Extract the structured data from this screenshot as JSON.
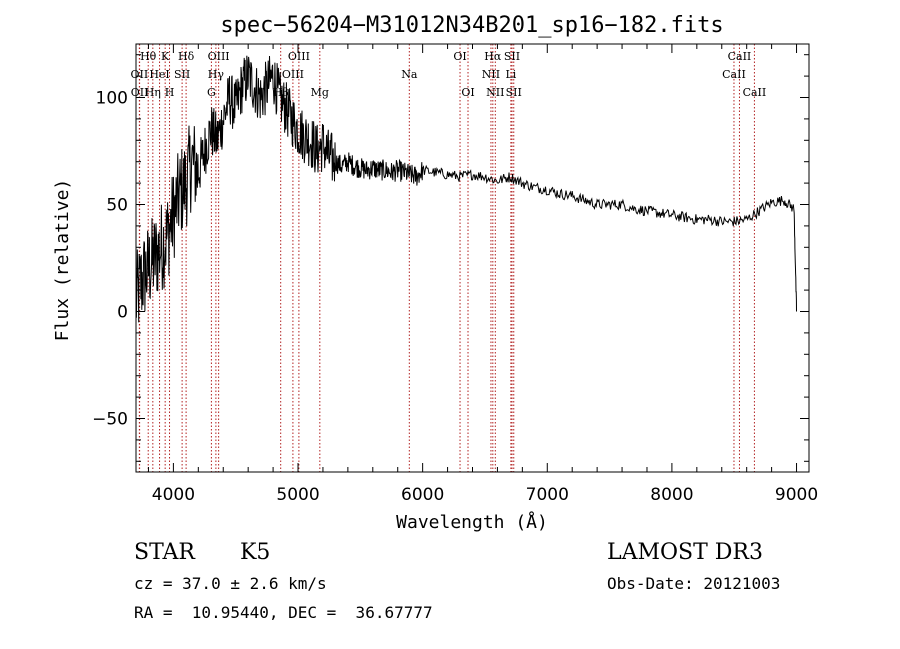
{
  "chart_data": {
    "type": "line",
    "title": "spec−56204−M31012N34B201_sp16−182.fits",
    "xlabel": "Wavelength (Å)",
    "ylabel": "Flux (relative)",
    "xlim": [
      3700,
      9100
    ],
    "ylim": [
      -75,
      125
    ],
    "x_ticks": [
      4000,
      5000,
      6000,
      7000,
      8000,
      9000
    ],
    "y_ticks": [
      -50,
      0,
      50,
      100
    ],
    "grid": false,
    "legend": "none",
    "series": [
      {
        "name": "spectrum",
        "x": [
          3700,
          3750,
          3800,
          3850,
          3900,
          3950,
          4000,
          4050,
          4100,
          4150,
          4200,
          4250,
          4300,
          4350,
          4400,
          4450,
          4500,
          4550,
          4600,
          4650,
          4700,
          4750,
          4800,
          4850,
          4900,
          4950,
          5000,
          5050,
          5100,
          5150,
          5200,
          5250,
          5300,
          5350,
          5400,
          5450,
          5500,
          5550,
          5600,
          5650,
          5700,
          5750,
          5800,
          5850,
          5900,
          5950,
          6000,
          6100,
          6200,
          6300,
          6400,
          6500,
          6600,
          6700,
          6800,
          6900,
          7000,
          7100,
          7200,
          7300,
          7400,
          7500,
          7600,
          7700,
          7800,
          7900,
          8000,
          8100,
          8200,
          8300,
          8400,
          8500,
          8600,
          8700,
          8800,
          8900,
          8980,
          9000
        ],
        "y": [
          5,
          15,
          20,
          25,
          30,
          35,
          45,
          55,
          60,
          70,
          65,
          75,
          85,
          80,
          90,
          100,
          95,
          105,
          110,
          105,
          100,
          105,
          110,
          100,
          95,
          90,
          85,
          82,
          80,
          75,
          78,
          72,
          70,
          68,
          70,
          68,
          67,
          66,
          67,
          66,
          66,
          65,
          66,
          65,
          64,
          63,
          66,
          65,
          64,
          63,
          64,
          63,
          61,
          63,
          60,
          58,
          57,
          55,
          54,
          52,
          50,
          50,
          50,
          48,
          47,
          46,
          45,
          44,
          43,
          43,
          42,
          42,
          43,
          47,
          51,
          52,
          48,
          0
        ]
      }
    ],
    "line_markers": [
      {
        "label": "Hθ",
        "wavelength": 3798,
        "row": 0
      },
      {
        "label": "OII",
        "wavelength": 3727,
        "row": 1
      },
      {
        "label": "OII",
        "wavelength": 3729,
        "row": 2
      },
      {
        "label": "Hη",
        "wavelength": 3835,
        "row": 2
      },
      {
        "label": "K",
        "wavelength": 3934,
        "row": 0
      },
      {
        "label": "HeI",
        "wavelength": 3889,
        "row": 1
      },
      {
        "label": "H",
        "wavelength": 3969,
        "row": 2
      },
      {
        "label": "SII",
        "wavelength": 4070,
        "row": 1
      },
      {
        "label": "Hδ",
        "wavelength": 4102,
        "row": 0
      },
      {
        "label": "OIII",
        "wavelength": 4363,
        "row": 0
      },
      {
        "label": "Hγ",
        "wavelength": 4341,
        "row": 1
      },
      {
        "label": "G",
        "wavelength": 4305,
        "row": 2
      },
      {
        "label": "OIII",
        "wavelength": 5007,
        "row": 0
      },
      {
        "label": "OIII",
        "wavelength": 4959,
        "row": 1
      },
      {
        "label": "Hβ",
        "wavelength": 4861,
        "row": 2
      },
      {
        "label": "Mg",
        "wavelength": 5175,
        "row": 2
      },
      {
        "label": "Na",
        "wavelength": 5893,
        "row": 1
      },
      {
        "label": "OI",
        "wavelength": 6300,
        "row": 0
      },
      {
        "label": "OI",
        "wavelength": 6364,
        "row": 2
      },
      {
        "label": "Hα",
        "wavelength": 6563,
        "row": 0
      },
      {
        "label": "SII",
        "wavelength": 6717,
        "row": 0
      },
      {
        "label": "NII",
        "wavelength": 6548,
        "row": 1
      },
      {
        "label": "Li",
        "wavelength": 6708,
        "row": 1
      },
      {
        "label": "NII",
        "wavelength": 6583,
        "row": 2
      },
      {
        "label": "SII",
        "wavelength": 6731,
        "row": 2
      },
      {
        "label": "CaII",
        "wavelength": 8542,
        "row": 0
      },
      {
        "label": "CaII",
        "wavelength": 8498,
        "row": 1
      },
      {
        "label": "CaII",
        "wavelength": 8662,
        "row": 2
      }
    ],
    "annotations": {
      "class": "STAR",
      "subclass": "K5",
      "survey": "LAMOST DR3",
      "redshift": "cz = 37.0 ± 2.6 km/s",
      "obs_date": "Obs-Date: 20121003",
      "coords": "RA =  10.95440, DEC =  36.67777"
    }
  }
}
